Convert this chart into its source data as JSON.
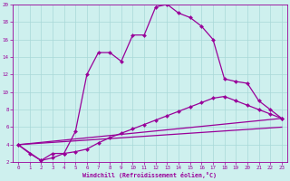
{
  "xlabel": "Windchill (Refroidissement éolien,°C)",
  "background_color": "#cef0ee",
  "grid_color": "#a8d8d8",
  "line_color": "#990099",
  "xlim": [
    -0.5,
    23.5
  ],
  "ylim": [
    2,
    20
  ],
  "xticks": [
    0,
    1,
    2,
    3,
    4,
    5,
    6,
    7,
    8,
    9,
    10,
    11,
    12,
    13,
    14,
    15,
    16,
    17,
    18,
    19,
    20,
    21,
    22,
    23
  ],
  "yticks": [
    2,
    4,
    6,
    8,
    10,
    12,
    14,
    16,
    18,
    20
  ],
  "curve1_x": [
    0,
    1,
    2,
    3,
    4,
    5,
    6,
    7,
    8,
    9,
    10,
    11,
    12,
    13,
    14,
    15,
    16,
    17,
    18,
    19,
    20,
    21,
    22,
    23
  ],
  "curve1_y": [
    4.0,
    3.0,
    2.2,
    3.0,
    3.0,
    5.5,
    12.0,
    14.5,
    14.5,
    13.5,
    16.5,
    16.5,
    19.7,
    20.0,
    19.0,
    18.5,
    17.5,
    16.0,
    11.5,
    11.2,
    11.0,
    9.0,
    8.0,
    7.0
  ],
  "curve2_x": [
    0,
    2,
    3,
    4,
    5,
    6,
    7,
    8,
    9,
    10,
    11,
    12,
    13,
    14,
    15,
    16,
    17,
    18,
    19,
    20,
    21,
    22,
    23
  ],
  "curve2_y": [
    4.0,
    2.2,
    2.5,
    3.0,
    3.2,
    3.5,
    4.2,
    4.8,
    5.3,
    5.8,
    6.3,
    6.8,
    7.3,
    7.8,
    8.3,
    8.8,
    9.3,
    9.5,
    9.0,
    8.5,
    8.0,
    7.5,
    7.0
  ],
  "curve3_x": [
    0,
    23
  ],
  "curve3_y": [
    4.0,
    7.0
  ],
  "curve4_x": [
    0,
    23
  ],
  "curve4_y": [
    4.0,
    6.0
  ],
  "linewidth": 0.9,
  "markersize": 2.2
}
